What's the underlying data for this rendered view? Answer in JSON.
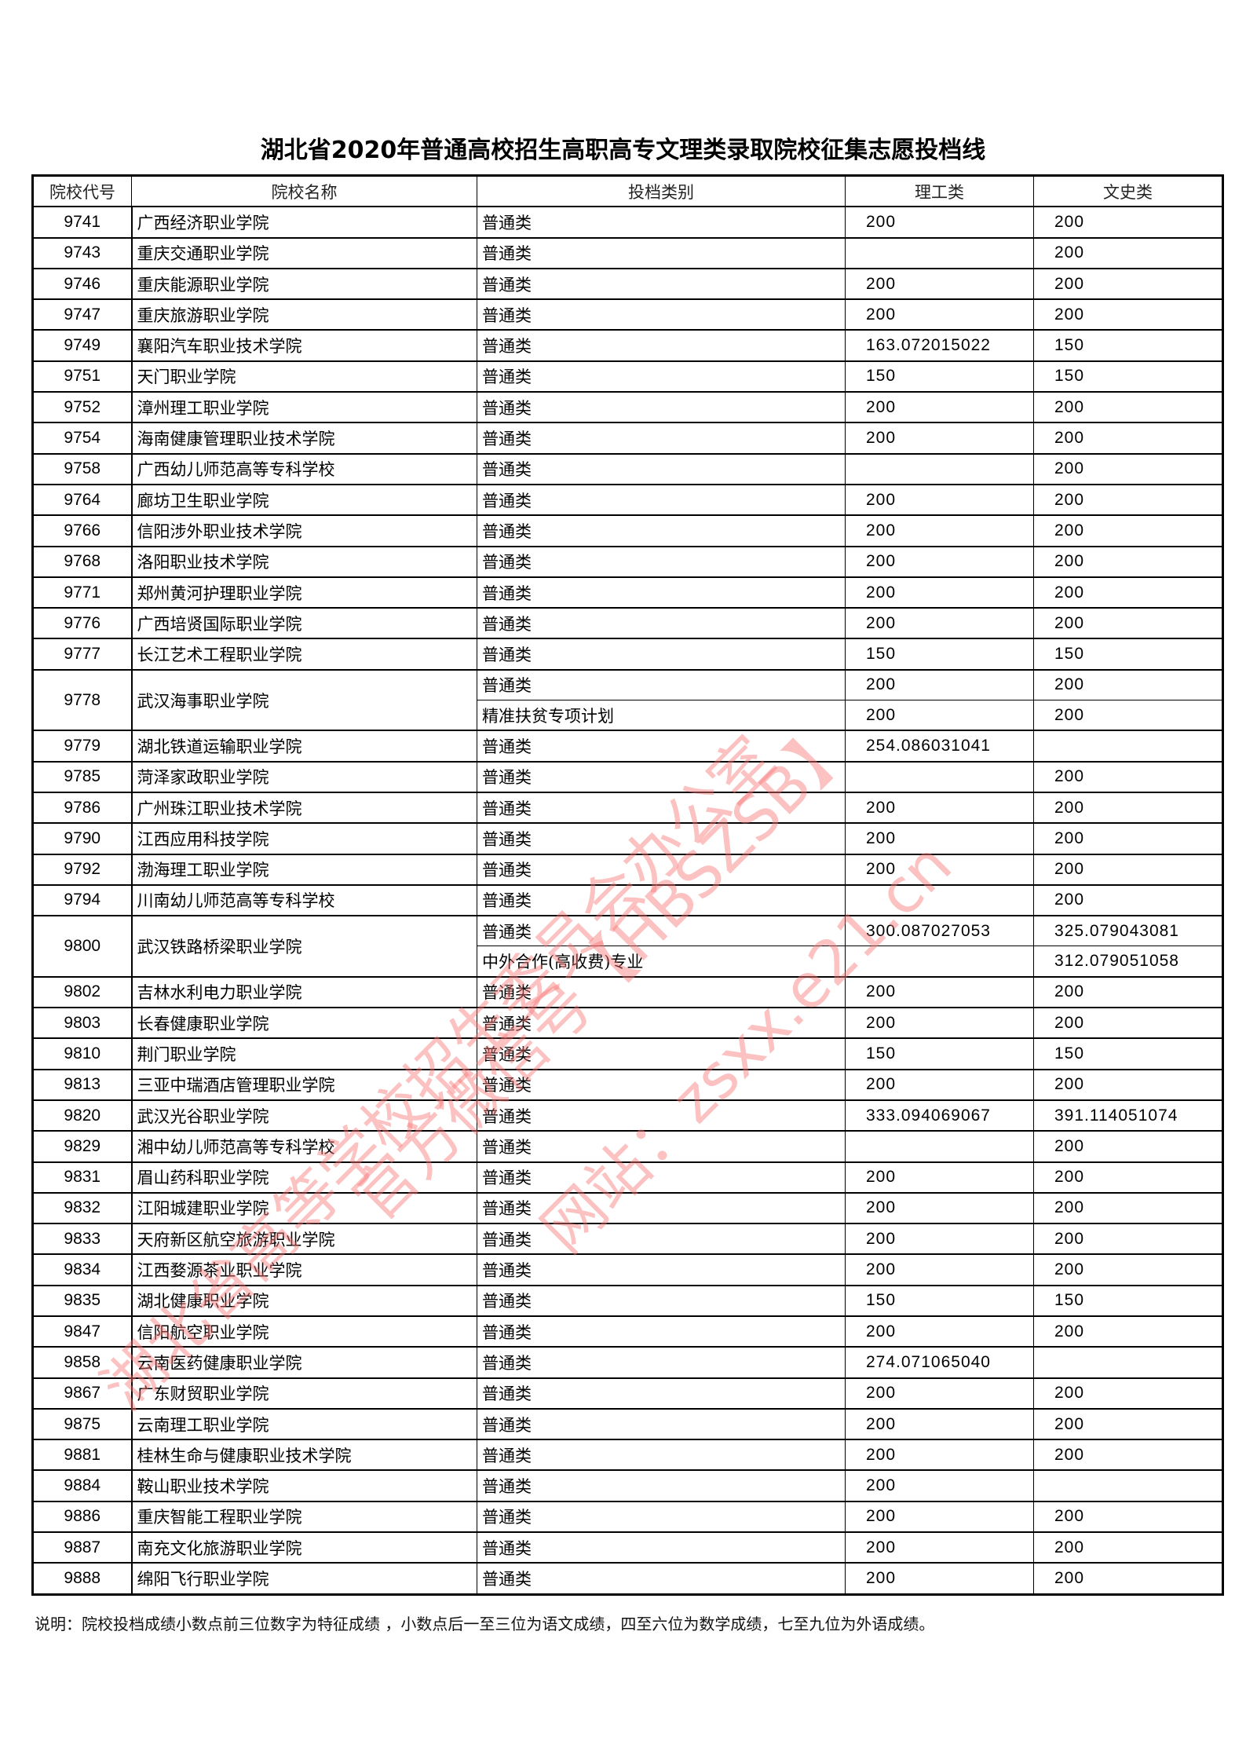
{
  "title": "湖北省2020年普通高校招生高职高专文理类录取院校征集志愿投档线",
  "headers": [
    "院校代号",
    "院校名称",
    "投档类别",
    "理工类",
    "文史类"
  ],
  "rows": [
    {
      "code": "9741",
      "name": "广西经济职业学院",
      "entries": [
        {
          "type": "普通类",
          "sci": "200",
          "arts": "200"
        }
      ]
    },
    {
      "code": "9743",
      "name": "重庆交通职业学院",
      "entries": [
        {
          "type": "普通类",
          "sci": "",
          "arts": "200"
        }
      ]
    },
    {
      "code": "9746",
      "name": "重庆能源职业学院",
      "entries": [
        {
          "type": "普通类",
          "sci": "200",
          "arts": "200"
        }
      ]
    },
    {
      "code": "9747",
      "name": "重庆旅游职业学院",
      "entries": [
        {
          "type": "普通类",
          "sci": "200",
          "arts": "200"
        }
      ]
    },
    {
      "code": "9749",
      "name": "襄阳汽车职业技术学院",
      "entries": [
        {
          "type": "普通类",
          "sci": "163.072015022",
          "arts": "150"
        }
      ]
    },
    {
      "code": "9751",
      "name": "天门职业学院",
      "entries": [
        {
          "type": "普通类",
          "sci": "150",
          "arts": "150"
        }
      ]
    },
    {
      "code": "9752",
      "name": "漳州理工职业学院",
      "entries": [
        {
          "type": "普通类",
          "sci": "200",
          "arts": "200"
        }
      ]
    },
    {
      "code": "9754",
      "name": "海南健康管理职业技术学院",
      "entries": [
        {
          "type": "普通类",
          "sci": "200",
          "arts": "200"
        }
      ]
    },
    {
      "code": "9758",
      "name": "广西幼儿师范高等专科学校",
      "entries": [
        {
          "type": "普通类",
          "sci": "",
          "arts": "200"
        }
      ]
    },
    {
      "code": "9764",
      "name": "廊坊卫生职业学院",
      "entries": [
        {
          "type": "普通类",
          "sci": "200",
          "arts": "200"
        }
      ]
    },
    {
      "code": "9766",
      "name": "信阳涉外职业技术学院",
      "entries": [
        {
          "type": "普通类",
          "sci": "200",
          "arts": "200"
        }
      ]
    },
    {
      "code": "9768",
      "name": "洛阳职业技术学院",
      "entries": [
        {
          "type": "普通类",
          "sci": "200",
          "arts": "200"
        }
      ]
    },
    {
      "code": "9771",
      "name": "郑州黄河护理职业学院",
      "entries": [
        {
          "type": "普通类",
          "sci": "200",
          "arts": "200"
        }
      ]
    },
    {
      "code": "9776",
      "name": "广西培贤国际职业学院",
      "entries": [
        {
          "type": "普通类",
          "sci": "200",
          "arts": "200"
        }
      ]
    },
    {
      "code": "9777",
      "name": "长江艺术工程职业学院",
      "entries": [
        {
          "type": "普通类",
          "sci": "150",
          "arts": "150"
        }
      ]
    },
    {
      "code": "9778",
      "name": "武汉海事职业学院",
      "entries": [
        {
          "type": "普通类",
          "sci": "200",
          "arts": "200"
        },
        {
          "type": "精准扶贫专项计划",
          "sci": "200",
          "arts": "200"
        }
      ]
    },
    {
      "code": "9779",
      "name": "湖北铁道运输职业学院",
      "entries": [
        {
          "type": "普通类",
          "sci": "254.086031041",
          "arts": ""
        }
      ]
    },
    {
      "code": "9785",
      "name": "菏泽家政职业学院",
      "entries": [
        {
          "type": "普通类",
          "sci": "",
          "arts": "200"
        }
      ]
    },
    {
      "code": "9786",
      "name": "广州珠江职业技术学院",
      "entries": [
        {
          "type": "普通类",
          "sci": "200",
          "arts": "200"
        }
      ]
    },
    {
      "code": "9790",
      "name": "江西应用科技学院",
      "entries": [
        {
          "type": "普通类",
          "sci": "200",
          "arts": "200"
        }
      ]
    },
    {
      "code": "9792",
      "name": "渤海理工职业学院",
      "entries": [
        {
          "type": "普通类",
          "sci": "200",
          "arts": "200"
        }
      ]
    },
    {
      "code": "9794",
      "name": "川南幼儿师范高等专科学校",
      "entries": [
        {
          "type": "普通类",
          "sci": "",
          "arts": "200"
        }
      ]
    },
    {
      "code": "9800",
      "name": "武汉铁路桥梁职业学院",
      "entries": [
        {
          "type": "普通类",
          "sci": "300.087027053",
          "arts": "325.079043081"
        },
        {
          "type": "中外合作(高收费)专业",
          "sci": "",
          "arts": "312.079051058"
        }
      ]
    },
    {
      "code": "9802",
      "name": "吉林水利电力职业学院",
      "entries": [
        {
          "type": "普通类",
          "sci": "200",
          "arts": "200"
        }
      ]
    },
    {
      "code": "9803",
      "name": "长春健康职业学院",
      "entries": [
        {
          "type": "普通类",
          "sci": "200",
          "arts": "200"
        }
      ]
    },
    {
      "code": "9810",
      "name": "荆门职业学院",
      "entries": [
        {
          "type": "普通类",
          "sci": "150",
          "arts": "150"
        }
      ]
    },
    {
      "code": "9813",
      "name": "三亚中瑞酒店管理职业学院",
      "entries": [
        {
          "type": "普通类",
          "sci": "200",
          "arts": "200"
        }
      ]
    },
    {
      "code": "9820",
      "name": "武汉光谷职业学院",
      "entries": [
        {
          "type": "普通类",
          "sci": "333.094069067",
          "arts": "391.114051074"
        }
      ]
    },
    {
      "code": "9829",
      "name": "湘中幼儿师范高等专科学校",
      "entries": [
        {
          "type": "普通类",
          "sci": "",
          "arts": "200"
        }
      ]
    },
    {
      "code": "9831",
      "name": "眉山药科职业学院",
      "entries": [
        {
          "type": "普通类",
          "sci": "200",
          "arts": "200"
        }
      ]
    },
    {
      "code": "9832",
      "name": "江阳城建职业学院",
      "entries": [
        {
          "type": "普通类",
          "sci": "200",
          "arts": "200"
        }
      ]
    },
    {
      "code": "9833",
      "name": "天府新区航空旅游职业学院",
      "entries": [
        {
          "type": "普通类",
          "sci": "200",
          "arts": "200"
        }
      ]
    },
    {
      "code": "9834",
      "name": "江西婺源茶业职业学院",
      "entries": [
        {
          "type": "普通类",
          "sci": "200",
          "arts": "200"
        }
      ]
    },
    {
      "code": "9835",
      "name": "湖北健康职业学院",
      "entries": [
        {
          "type": "普通类",
          "sci": "150",
          "arts": "150"
        }
      ]
    },
    {
      "code": "9847",
      "name": "信阳航空职业学院",
      "entries": [
        {
          "type": "普通类",
          "sci": "200",
          "arts": "200"
        }
      ]
    },
    {
      "code": "9858",
      "name": "云南医药健康职业学院",
      "entries": [
        {
          "type": "普通类",
          "sci": "274.071065040",
          "arts": ""
        }
      ]
    },
    {
      "code": "9867",
      "name": "广东财贸职业学院",
      "entries": [
        {
          "type": "普通类",
          "sci": "200",
          "arts": "200"
        }
      ]
    },
    {
      "code": "9875",
      "name": "云南理工职业学院",
      "entries": [
        {
          "type": "普通类",
          "sci": "200",
          "arts": "200"
        }
      ]
    },
    {
      "code": "9881",
      "name": "桂林生命与健康职业技术学院",
      "entries": [
        {
          "type": "普通类",
          "sci": "200",
          "arts": "200"
        }
      ]
    },
    {
      "code": "9884",
      "name": "鞍山职业技术学院",
      "entries": [
        {
          "type": "普通类",
          "sci": "200",
          "arts": ""
        }
      ]
    },
    {
      "code": "9886",
      "name": "重庆智能工程职业学院",
      "entries": [
        {
          "type": "普通类",
          "sci": "200",
          "arts": "200"
        }
      ]
    },
    {
      "code": "9887",
      "name": "南充文化旅游职业学院",
      "entries": [
        {
          "type": "普通类",
          "sci": "200",
          "arts": "200"
        }
      ]
    },
    {
      "code": "9888",
      "name": "绵阳飞行职业学院",
      "entries": [
        {
          "type": "普通类",
          "sci": "200",
          "arts": "200"
        }
      ]
    }
  ],
  "note": "说明：院校投档成绩小数点前三位数字为特征成绩 ，小数点后一至三位为语文成绩，四至六位为数学成绩，七至九位为外语成绩。",
  "watermark": {
    "line1": "湖北省高等学校招生委员会办公室",
    "line2": "官方微信号【HBSZSB】",
    "line3": "网站：zsxx.e21.cn",
    "color": "#f87878"
  }
}
